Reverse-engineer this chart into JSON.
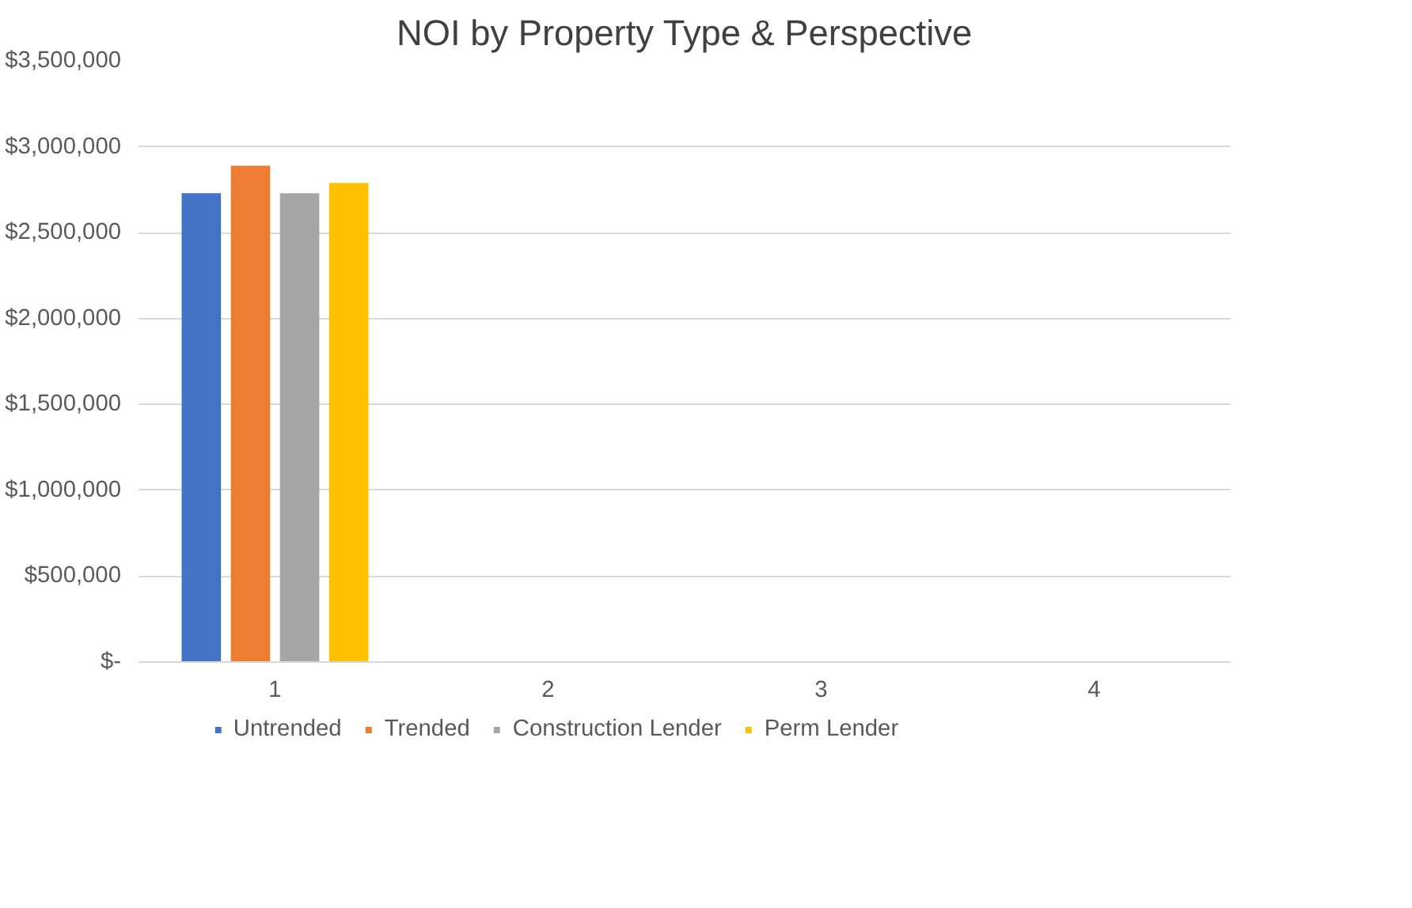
{
  "chart_data": {
    "type": "bar",
    "title": "NOI by Property Type & Perspective",
    "categories": [
      "1",
      "2",
      "3",
      "4"
    ],
    "series": [
      {
        "name": "Untrended",
        "color": "#4472c4",
        "values": [
          2730000,
          null,
          null,
          null
        ]
      },
      {
        "name": "Trended",
        "color": "#ed7d31",
        "values": [
          2890000,
          null,
          null,
          null
        ]
      },
      {
        "name": "Construction Lender",
        "color": "#a5a5a5",
        "values": [
          2730000,
          null,
          null,
          null
        ]
      },
      {
        "name": "Perm Lender",
        "color": "#ffc000",
        "values": [
          2790000,
          null,
          null,
          null
        ]
      }
    ],
    "ylim": [
      0,
      3500000
    ],
    "yticks": [
      {
        "value": 0,
        "label": "$-"
      },
      {
        "value": 500000,
        "label": "$500,000"
      },
      {
        "value": 1000000,
        "label": "$1,000,000"
      },
      {
        "value": 1500000,
        "label": "$1,500,000"
      },
      {
        "value": 2000000,
        "label": "$2,000,000"
      },
      {
        "value": 2500000,
        "label": "$2,500,000"
      },
      {
        "value": 3000000,
        "label": "$3,000,000"
      },
      {
        "value": 3500000,
        "label": "$3,500,000"
      }
    ],
    "grid": "y",
    "legend": "bottom"
  }
}
